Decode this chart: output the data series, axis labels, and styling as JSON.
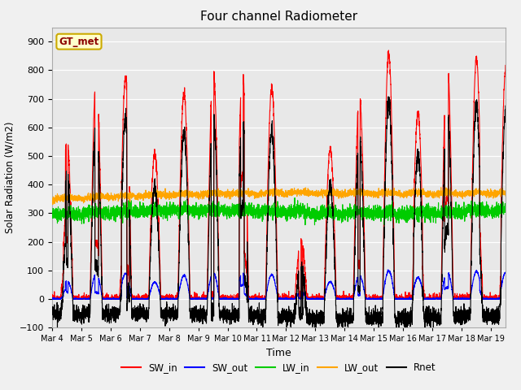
{
  "title": "Four channel Radiometer",
  "xlabel": "Time",
  "ylabel": "Solar Radiation (W/m2)",
  "ylim": [
    -100,
    950
  ],
  "xlim": [
    0,
    15.5
  ],
  "background_color": "#f0f0f0",
  "plot_bg_color": "#e8e8e8",
  "legend_labels": [
    "SW_in",
    "SW_out",
    "LW_in",
    "LW_out",
    "Rnet"
  ],
  "legend_colors": [
    "#ff0000",
    "#0000ff",
    "#00cc00",
    "#ffa500",
    "#000000"
  ],
  "station_label": "GT_met",
  "xtick_labels": [
    "Mar 4",
    "Mar 5",
    "Mar 6",
    "Mar 7",
    "Mar 8",
    "Mar 9",
    "Mar 10",
    "Mar 11",
    "Mar 12",
    "Mar 13",
    "Mar 14",
    "Mar 15",
    "Mar 16",
    "Mar 17",
    "Mar 18",
    "Mar 19"
  ],
  "xtick_positions": [
    0,
    1,
    2,
    3,
    4,
    5,
    6,
    7,
    8,
    9,
    10,
    11,
    12,
    13,
    14,
    15
  ],
  "yticks": [
    -100,
    0,
    100,
    200,
    300,
    400,
    500,
    600,
    700,
    800,
    900
  ],
  "grid_color": "#ffffff",
  "line_width": 0.8,
  "sw_in_peaks": [
    550,
    780,
    770,
    510,
    720,
    800,
    790,
    740,
    200,
    525,
    710,
    860,
    650,
    840,
    840,
    800
  ],
  "lw_in_base": 290,
  "lw_out_base": 345,
  "night_rnet": -65
}
